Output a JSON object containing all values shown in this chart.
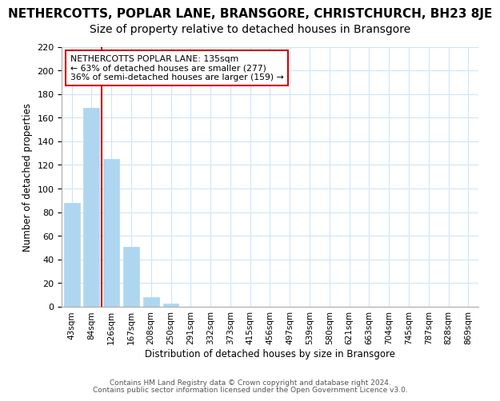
{
  "title": "NETHERCOTTS, POPLAR LANE, BRANSGORE, CHRISTCHURCH, BH23 8JE",
  "subtitle": "Size of property relative to detached houses in Bransgore",
  "xlabel": "Distribution of detached houses by size in Bransgore",
  "ylabel": "Number of detached properties",
  "bar_labels": [
    "43sqm",
    "84sqm",
    "126sqm",
    "167sqm",
    "208sqm",
    "250sqm",
    "291sqm",
    "332sqm",
    "373sqm",
    "415sqm",
    "456sqm",
    "497sqm",
    "539sqm",
    "580sqm",
    "621sqm",
    "663sqm",
    "704sqm",
    "745sqm",
    "787sqm",
    "828sqm",
    "869sqm"
  ],
  "bar_values": [
    88,
    168,
    125,
    51,
    8,
    3,
    0,
    0,
    0,
    0,
    0,
    0,
    0,
    0,
    0,
    0,
    0,
    0,
    0,
    0,
    0
  ],
  "bar_color": "#aed6f1",
  "vline_color": "#cc0000",
  "vline_pos": 1.5,
  "ylim": [
    0,
    220
  ],
  "yticks": [
    0,
    20,
    40,
    60,
    80,
    100,
    120,
    140,
    160,
    180,
    200,
    220
  ],
  "annotation_title": "NETHERCOTTS POPLAR LANE: 135sqm",
  "annotation_line1": "← 63% of detached houses are smaller (277)",
  "annotation_line2": "36% of semi-detached houses are larger (159) →",
  "annotation_box_color": "#ffffff",
  "annotation_box_edgecolor": "#cc0000",
  "footer1": "Contains HM Land Registry data © Crown copyright and database right 2024.",
  "footer2": "Contains public sector information licensed under the Open Government Licence v3.0.",
  "background_color": "#ffffff",
  "grid_color": "#d0e4f7",
  "title_fontsize": 11,
  "subtitle_fontsize": 10
}
